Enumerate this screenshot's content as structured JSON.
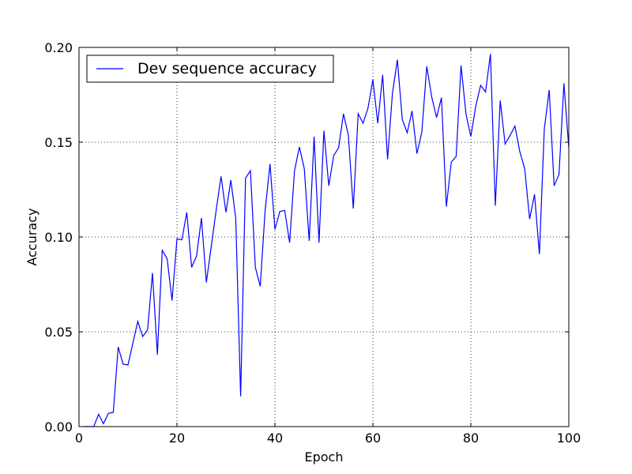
{
  "chart_data": {
    "type": "line",
    "title": "",
    "xlabel": "Epoch",
    "ylabel": "Accuracy",
    "xlim": [
      0,
      100
    ],
    "ylim": [
      0.0,
      0.2
    ],
    "xticks": [
      "0",
      "20",
      "40",
      "60",
      "80",
      "100"
    ],
    "yticks": [
      "0.00",
      "0.05",
      "0.10",
      "0.15",
      "0.20"
    ],
    "grid": true,
    "legend_position": "top-left",
    "series": [
      {
        "name": "Dev sequence accuracy",
        "color": "#0000ff",
        "x": [
          1,
          2,
          3,
          4,
          5,
          6,
          7,
          8,
          9,
          10,
          11,
          12,
          13,
          14,
          15,
          16,
          17,
          18,
          19,
          20,
          21,
          22,
          23,
          24,
          25,
          26,
          27,
          28,
          29,
          30,
          31,
          32,
          33,
          34,
          35,
          36,
          37,
          38,
          39,
          40,
          41,
          42,
          43,
          44,
          45,
          46,
          47,
          48,
          49,
          50,
          51,
          52,
          53,
          54,
          55,
          56,
          57,
          58,
          59,
          60,
          61,
          62,
          63,
          64,
          65,
          66,
          67,
          68,
          69,
          70,
          71,
          72,
          73,
          74,
          75,
          76,
          77,
          78,
          79,
          80,
          81,
          82,
          83,
          84,
          85,
          86,
          87,
          88,
          89,
          90,
          91,
          92,
          93,
          94,
          95,
          96,
          97,
          98,
          99,
          100
        ],
        "values": [
          0.0,
          0.0,
          0.0,
          0.0065,
          0.0015,
          0.007,
          0.0075,
          0.042,
          0.033,
          0.0325,
          0.044,
          0.0555,
          0.0475,
          0.051,
          0.081,
          0.038,
          0.093,
          0.0885,
          0.0665,
          0.099,
          0.0985,
          0.113,
          0.084,
          0.09,
          0.11,
          0.076,
          0.095,
          0.114,
          0.132,
          0.113,
          0.13,
          0.11,
          0.016,
          0.131,
          0.135,
          0.084,
          0.074,
          0.114,
          0.1385,
          0.104,
          0.1135,
          0.114,
          0.097,
          0.135,
          0.1475,
          0.136,
          0.098,
          0.153,
          0.097,
          0.156,
          0.127,
          0.143,
          0.147,
          0.165,
          0.1535,
          0.115,
          0.165,
          0.16,
          0.168,
          0.183,
          0.16,
          0.1855,
          0.141,
          0.176,
          0.1935,
          0.162,
          0.155,
          0.1665,
          0.144,
          0.1555,
          0.19,
          0.174,
          0.163,
          0.1735,
          0.116,
          0.1395,
          0.1425,
          0.1905,
          0.165,
          0.153,
          0.169,
          0.18,
          0.1765,
          0.1965,
          0.1165,
          0.172,
          0.149,
          0.1535,
          0.1585,
          0.145,
          0.136,
          0.1095,
          0.1225,
          0.091,
          0.157,
          0.1775,
          0.127,
          0.133,
          0.181,
          0.147
        ]
      }
    ]
  }
}
